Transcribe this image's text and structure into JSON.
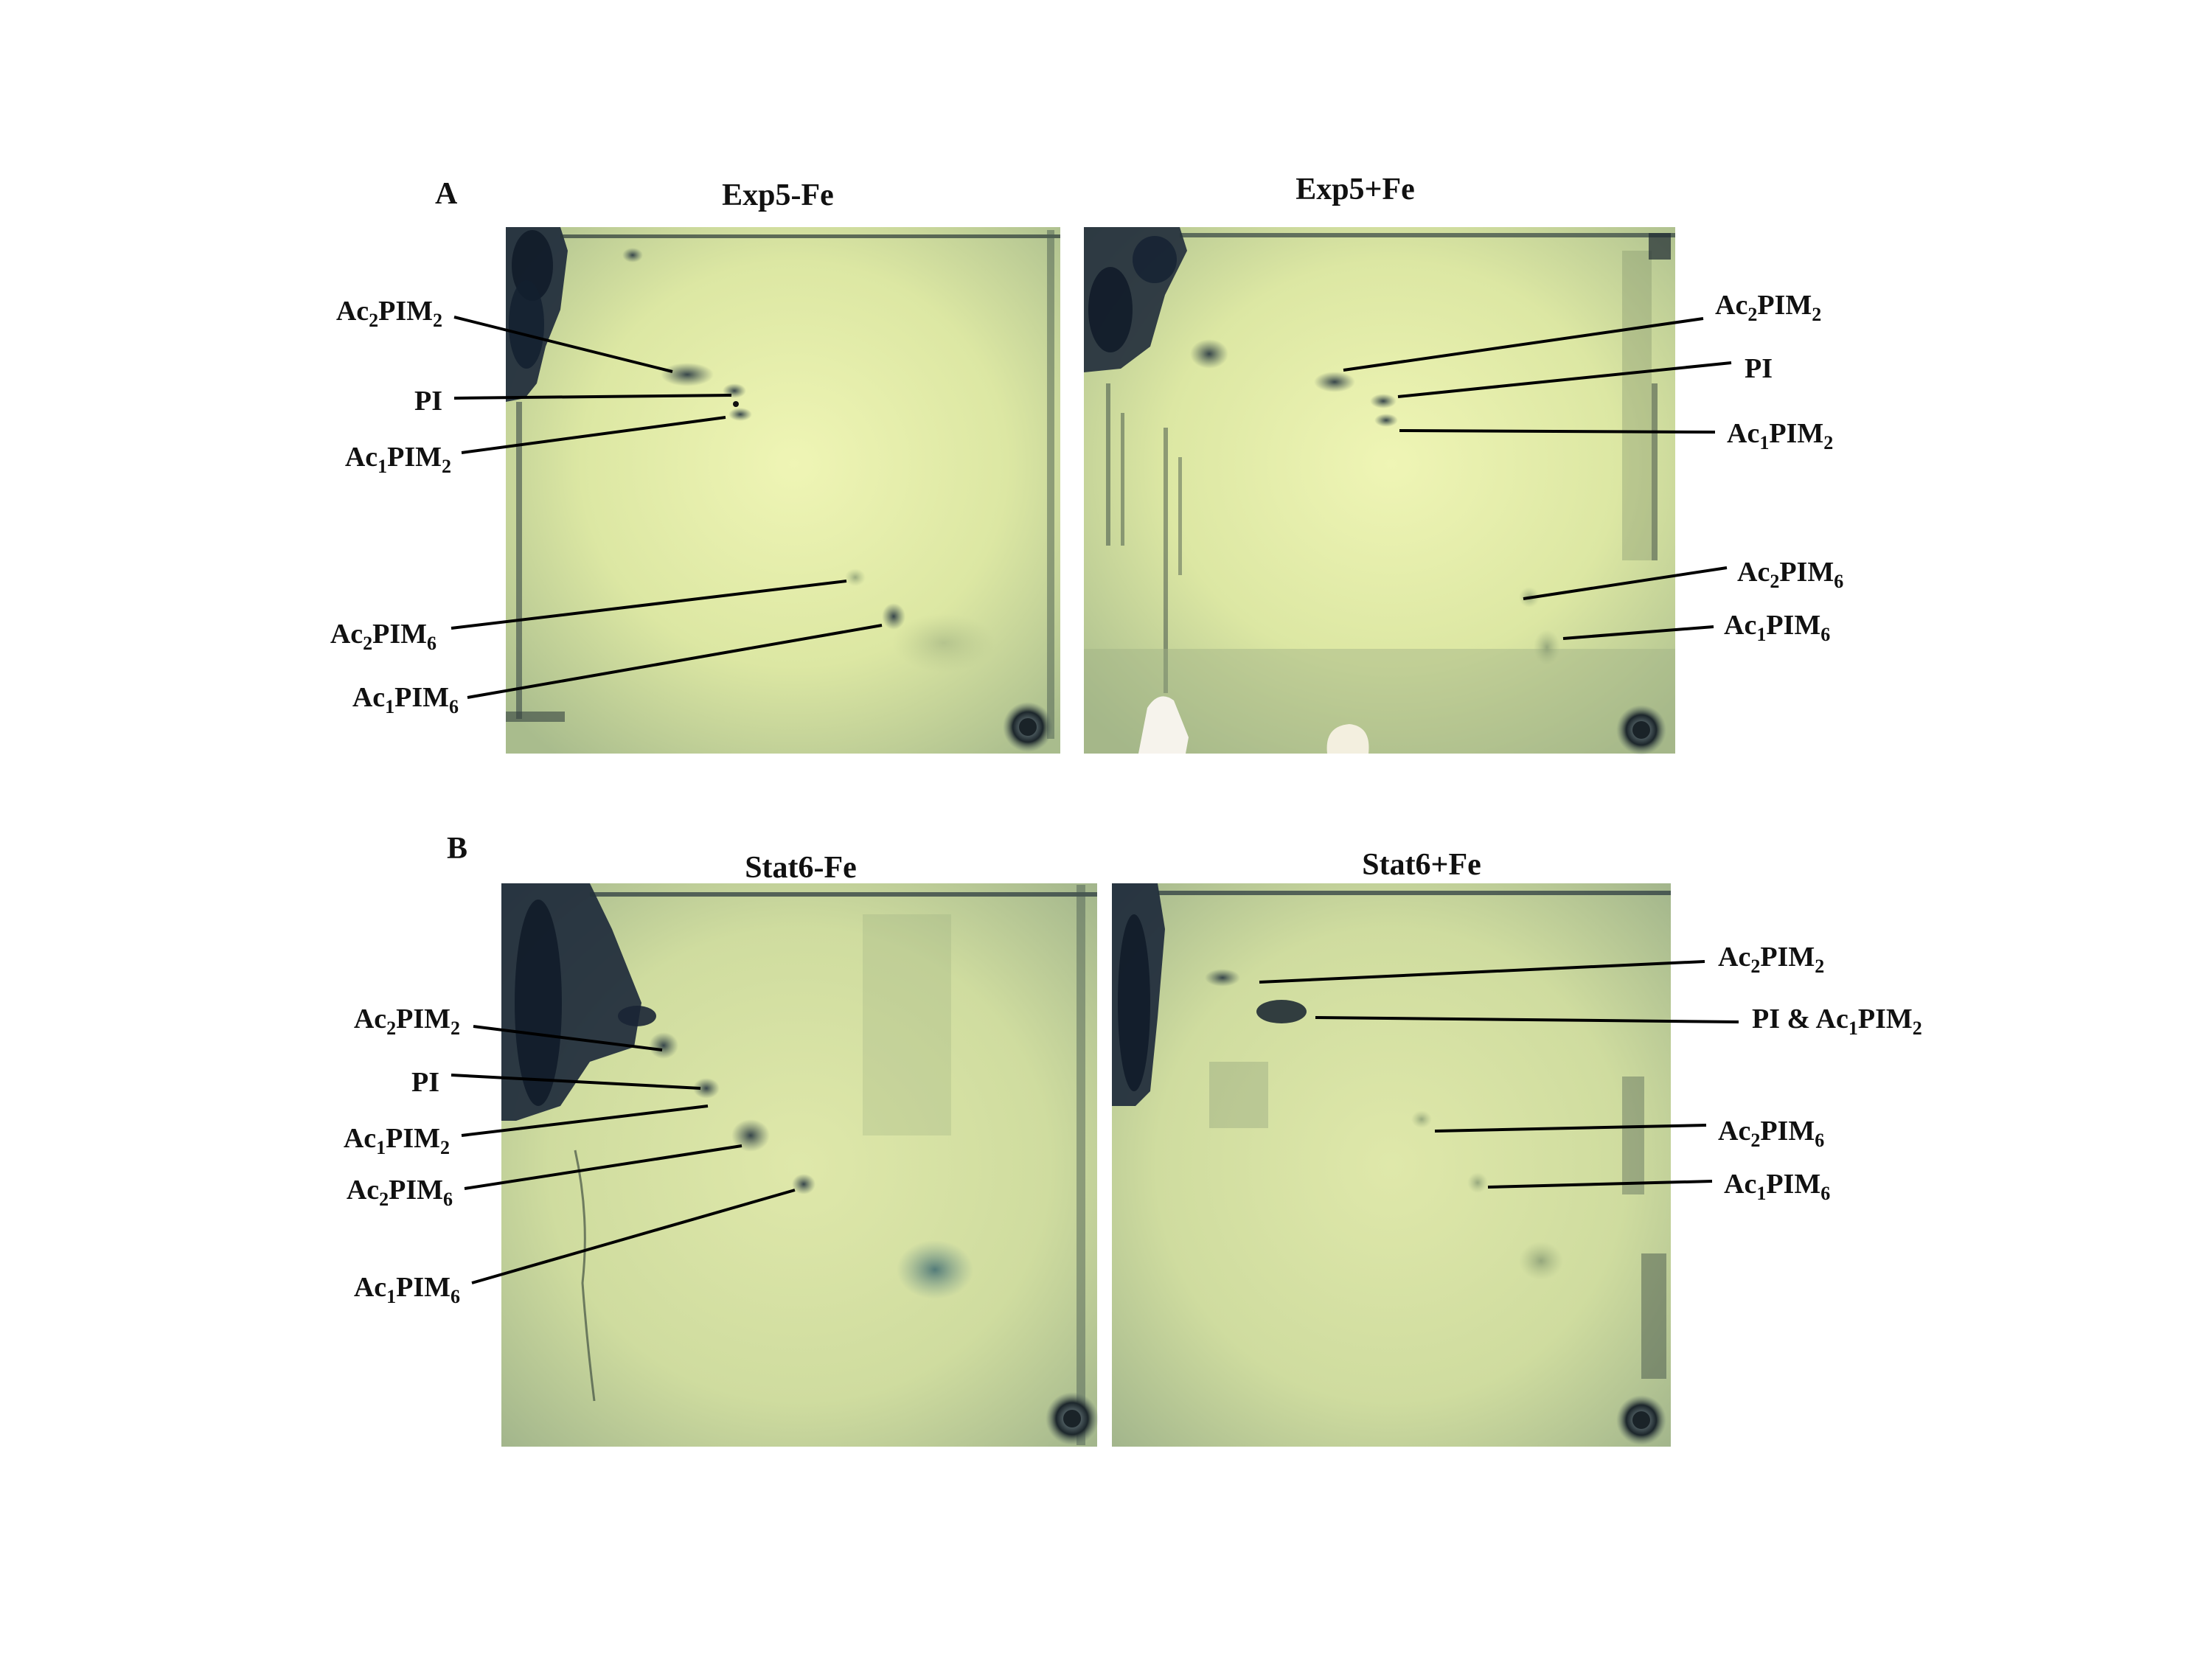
{
  "figure": {
    "panels": [
      {
        "letter": "A",
        "plates": [
          "Exp5-Fe",
          "Exp5+Fe"
        ]
      },
      {
        "letter": "B",
        "plates": [
          "Stat6-Fe",
          "Stat6+Fe"
        ]
      }
    ],
    "label_parts": {
      "ac": "Ac",
      "pim": "PIM",
      "pi": "PI",
      "pi_and": "PI & Ac",
      "sub_1": "1",
      "sub_2": "2",
      "sub_6": "6"
    },
    "plate_colors": {
      "background": "#dfe8a6",
      "center_glow": "#eef4b3",
      "edge_shade": "#7d9478",
      "spot": "#3d4f55",
      "origin_blob": "#1a2535"
    }
  }
}
